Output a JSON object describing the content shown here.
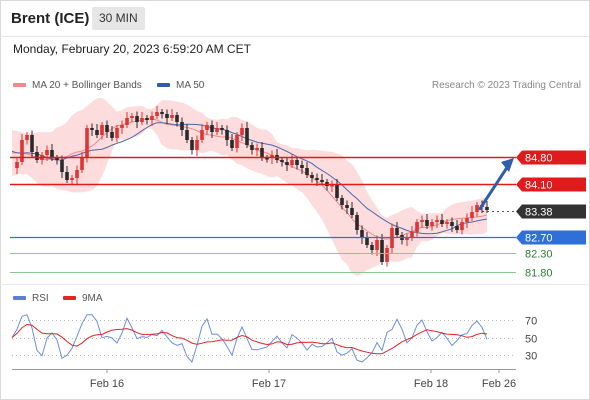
{
  "header": {
    "instrument": "Brent (ICE)",
    "timeframe": "30 MIN",
    "datetime": "Monday, February 20, 2023 6:59:20 AM CET"
  },
  "legend_main": [
    {
      "label": "MA 20 + Bollinger Bands",
      "color": "#f08a8a"
    },
    {
      "label": "MA 50",
      "color": "#2e5da8"
    }
  ],
  "legend_rsi": [
    {
      "label": "RSI",
      "color": "#5b7fd6"
    },
    {
      "label": "9MA",
      "color": "#e32424"
    }
  ],
  "credit": "Research © 2023 Trading Central",
  "colors": {
    "up": "#e03333",
    "down": "#2a2a2a",
    "resistance": "#e01b1b",
    "pivot": "#2f6fd8",
    "support": "#8cc88c",
    "arrow": "#2f5fa8",
    "band": "#fbd6d6",
    "ma20": "#f08a8a",
    "ma50": "#4a68b0",
    "current": "#333333"
  },
  "chart_data": [
    {
      "type": "candlestick",
      "title": "",
      "x_ticks": [
        "Feb 16",
        "Feb 17",
        "Feb 18",
        "Feb 26"
      ],
      "ylim": [
        81.6,
        85.1
      ],
      "levels": [
        {
          "label": "84.80",
          "value": 84.8,
          "kind": "resistance"
        },
        {
          "label": "84.10",
          "value": 84.1,
          "kind": "resistance"
        },
        {
          "label": "83.38",
          "value": 83.38,
          "kind": "current"
        },
        {
          "label": "82.70",
          "value": 82.7,
          "kind": "pivot"
        },
        {
          "label": "82.30",
          "value": 82.3,
          "kind": "support"
        },
        {
          "label": "81.80",
          "value": 81.8,
          "kind": "support"
        }
      ],
      "forecast_arrow": {
        "from": 83.4,
        "to": 84.8
      },
      "closes": [
        84.2,
        84.3,
        84.5,
        84.8,
        84.9,
        84.95,
        84.7,
        84.85,
        84.75,
        84.6,
        84.9,
        84.8,
        84.7,
        84.85,
        84.6,
        84.5,
        84.3,
        84.1,
        84.0,
        84.4,
        84.8,
        85.4,
        85.2,
        85.3,
        85.5,
        85.45,
        85.6,
        85.7,
        85.55,
        85.65,
        85.6,
        85.75,
        85.7,
        85.5,
        85.6,
        85.8,
        85.95,
        86.0,
        85.9,
        85.7,
        85.4,
        85.2,
        84.9,
        85.1,
        85.3,
        85.4,
        85.0,
        85.35,
        85.5,
        85.4,
        85.2,
        85.3,
        85.45,
        85.5,
        85.2,
        85.0,
        85.1,
        85.4,
        85.6,
        85.5,
        85.1,
        84.9,
        84.6,
        84.8,
        84.9,
        84.7,
        84.75,
        84.6,
        84.7,
        84.65,
        84.6,
        84.4,
        84.5,
        84.6,
        84.45,
        84.3,
        84.2,
        84.25,
        84.1,
        84.05,
        84.1,
        83.9,
        83.6,
        83.3,
        83.5,
        83.7,
        83.4,
        83.2,
        82.9,
        83.0,
        82.6,
        82.4,
        82.3,
        82.5,
        82.6,
        82.2,
        82.0,
        82.1,
        82.4,
        82.8,
        83.1,
        82.9,
        82.6,
        82.5,
        82.6,
        82.7,
        82.9,
        82.8,
        83.0,
        83.1,
        82.95,
        82.85,
        82.9,
        83.0,
        83.05,
        82.95,
        82.9,
        83.0,
        83.1,
        82.9,
        82.8,
        82.9,
        83.1,
        83.3,
        83.5,
        83.45,
        83.4
      ],
      "rsi_ylim": [
        20,
        80
      ],
      "rsi_ticks": [
        70,
        50,
        30
      ]
    }
  ]
}
